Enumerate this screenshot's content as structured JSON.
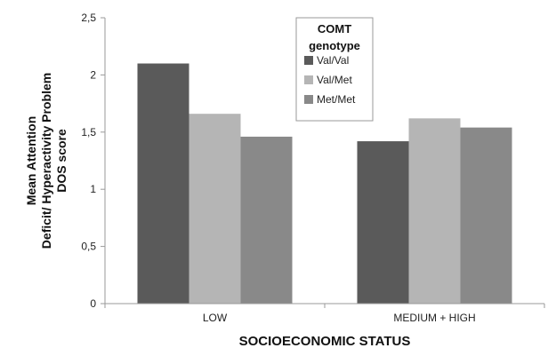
{
  "chart_data": {
    "type": "bar",
    "categories": [
      "LOW",
      "MEDIUM + HIGH"
    ],
    "series": [
      {
        "name": "Val/Val",
        "values": [
          2.1,
          1.42
        ],
        "color": "#5a5a5a"
      },
      {
        "name": "Val/Met",
        "values": [
          1.66,
          1.62
        ],
        "color": "#b5b5b5"
      },
      {
        "name": "Met/Met",
        "values": [
          1.46,
          1.54
        ],
        "color": "#898989"
      }
    ],
    "title": "",
    "xlabel": "SOCIOECONOMIC STATUS",
    "ylabel_lines": [
      "Mean Attention",
      "Deficit/ Hyperactivity  Problem",
      "DOS score"
    ],
    "ylim": [
      0,
      2.5
    ],
    "yticks": [
      {
        "value": 0,
        "label": "0"
      },
      {
        "value": 0.5,
        "label": "0,5"
      },
      {
        "value": 1,
        "label": "1"
      },
      {
        "value": 1.5,
        "label": "1,5"
      },
      {
        "value": 2,
        "label": "2"
      },
      {
        "value": 2.5,
        "label": "2,5"
      }
    ],
    "grid": false,
    "legend": {
      "title_lines": [
        "COMT",
        "genotype"
      ],
      "placement": "top-center"
    }
  }
}
